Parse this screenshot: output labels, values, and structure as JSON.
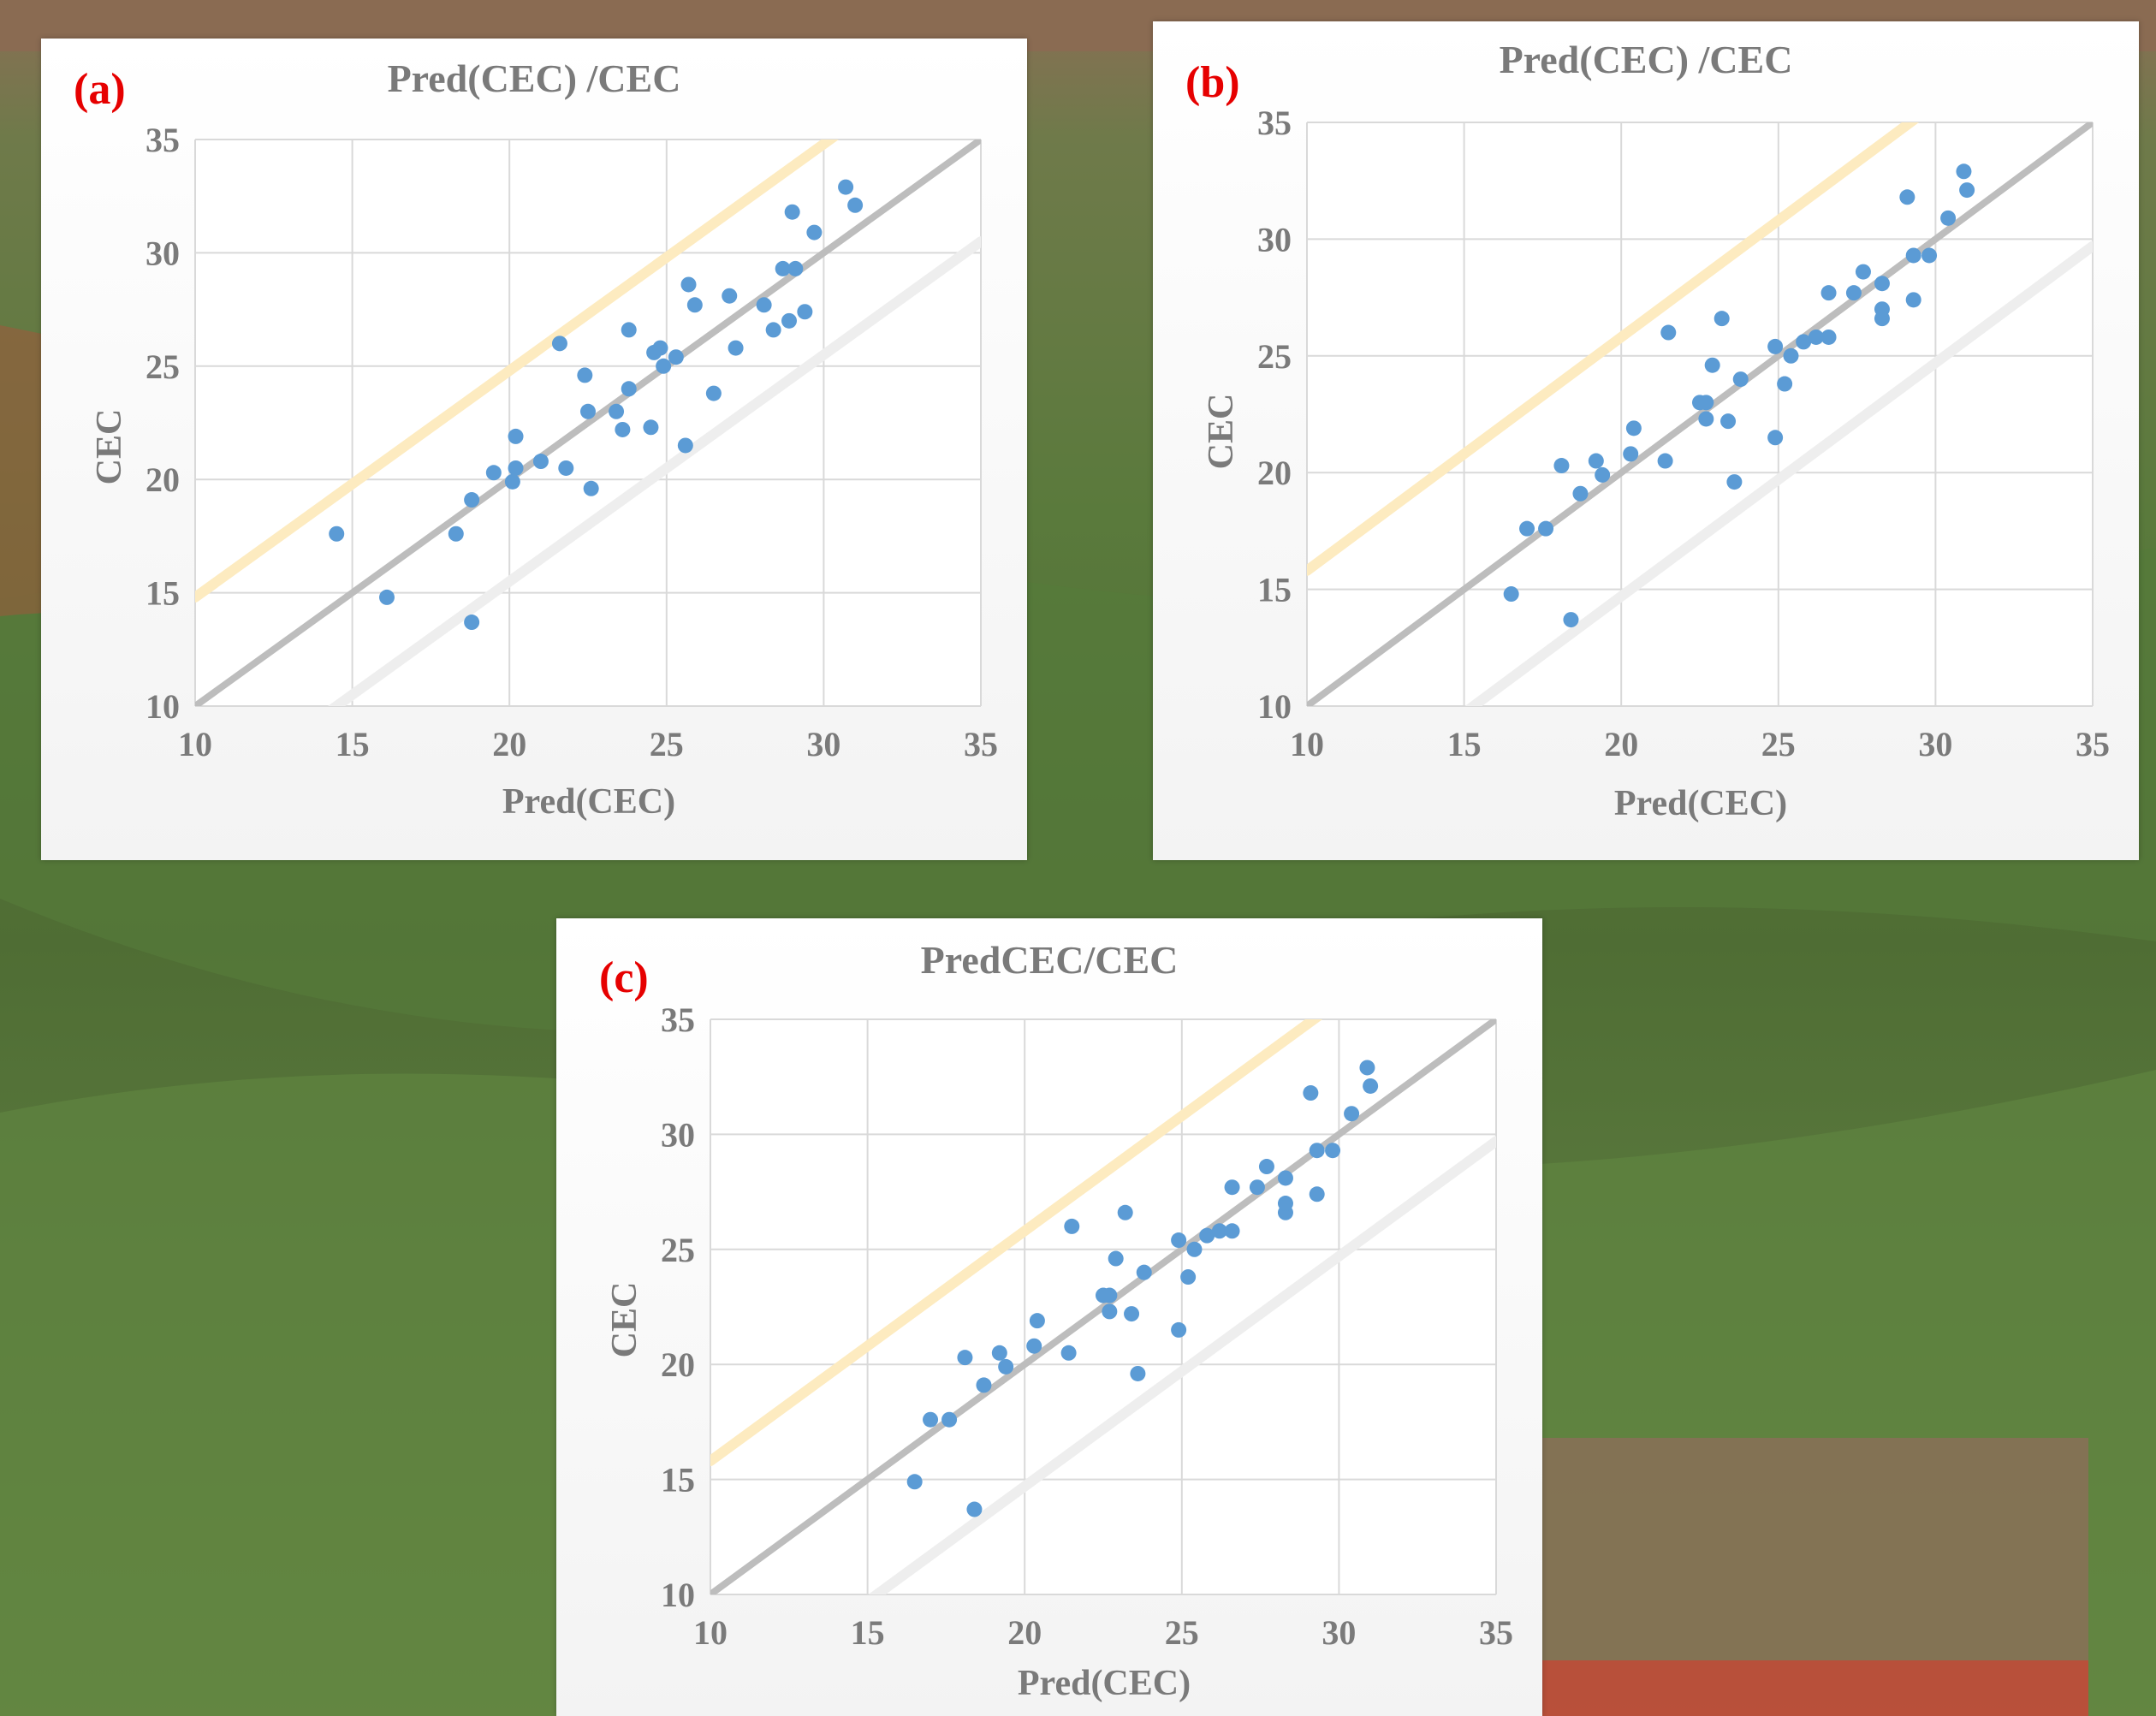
{
  "colors": {
    "points": "#5b9bd5",
    "identity_line": "#bdbdbd",
    "upper_band": "#fdebc0",
    "lower_band": "#eeeeee",
    "grid": "#d9d9d9",
    "panel_label": "#e60000",
    "text": "#7a7a7a"
  },
  "chart_data": [
    {
      "type": "scatter",
      "panel_label": "(a)",
      "title": "Pred(CEC) /CEC",
      "xlabel": "Pred(CEC)",
      "ylabel": "CEC",
      "xlim": [
        10,
        35
      ],
      "ylim": [
        10,
        35
      ],
      "ticks": [
        "10",
        "15",
        "20",
        "25",
        "30",
        "35"
      ],
      "grid": true,
      "reference_lines": {
        "identity_offset": 0,
        "upper_offset": 4.8,
        "lower_offset": -4.5
      },
      "series": [
        {
          "points": [
            [
              14.5,
              17.6
            ],
            [
              16.1,
              14.8
            ],
            [
              18.3,
              17.6
            ],
            [
              18.8,
              19.1
            ],
            [
              18.8,
              13.7
            ],
            [
              19.5,
              20.3
            ],
            [
              20.1,
              19.9
            ],
            [
              20.2,
              20.5
            ],
            [
              20.2,
              21.9
            ],
            [
              21.0,
              20.8
            ],
            [
              21.6,
              26.0
            ],
            [
              21.8,
              20.5
            ],
            [
              22.4,
              24.6
            ],
            [
              22.5,
              23.0
            ],
            [
              22.6,
              19.6
            ],
            [
              23.4,
              23.0
            ],
            [
              23.6,
              22.2
            ],
            [
              23.8,
              24.0
            ],
            [
              23.8,
              26.6
            ],
            [
              24.5,
              22.3
            ],
            [
              24.6,
              25.6
            ],
            [
              24.8,
              25.8
            ],
            [
              24.9,
              25.0
            ],
            [
              25.3,
              25.4
            ],
            [
              25.6,
              21.5
            ],
            [
              25.7,
              28.6
            ],
            [
              25.9,
              27.7
            ],
            [
              26.5,
              23.8
            ],
            [
              27.0,
              28.1
            ],
            [
              27.2,
              25.8
            ],
            [
              28.1,
              27.7
            ],
            [
              28.4,
              26.6
            ],
            [
              28.7,
              29.3
            ],
            [
              28.9,
              27.0
            ],
            [
              29.0,
              31.8
            ],
            [
              29.1,
              29.3
            ],
            [
              29.4,
              27.4
            ],
            [
              29.7,
              30.9
            ],
            [
              30.7,
              32.9
            ],
            [
              31.0,
              32.1
            ]
          ]
        }
      ]
    },
    {
      "type": "scatter",
      "panel_label": "(b)",
      "title": "Pred(CEC) /CEC",
      "xlabel": "Pred(CEC)",
      "ylabel": "CEC",
      "xlim": [
        10,
        35
      ],
      "ylim": [
        10,
        35
      ],
      "ticks": [
        "10",
        "15",
        "20",
        "25",
        "30",
        "35"
      ],
      "grid": true,
      "reference_lines": {
        "identity_offset": 0,
        "upper_offset": 5.8,
        "lower_offset": -5.3
      },
      "series": [
        {
          "points": [
            [
              16.5,
              14.8
            ],
            [
              17.0,
              17.6
            ],
            [
              17.6,
              17.6
            ],
            [
              18.1,
              20.3
            ],
            [
              18.4,
              13.7
            ],
            [
              18.7,
              19.1
            ],
            [
              19.2,
              20.5
            ],
            [
              19.4,
              19.9
            ],
            [
              20.3,
              20.8
            ],
            [
              20.4,
              21.9
            ],
            [
              21.4,
              20.5
            ],
            [
              21.5,
              26.0
            ],
            [
              22.5,
              23.0
            ],
            [
              22.7,
              22.3
            ],
            [
              22.7,
              23.0
            ],
            [
              22.9,
              24.6
            ],
            [
              23.2,
              26.6
            ],
            [
              23.4,
              22.2
            ],
            [
              23.6,
              19.6
            ],
            [
              23.8,
              24.0
            ],
            [
              24.9,
              21.5
            ],
            [
              24.9,
              25.4
            ],
            [
              25.2,
              23.8
            ],
            [
              25.4,
              25.0
            ],
            [
              25.8,
              25.6
            ],
            [
              26.2,
              25.8
            ],
            [
              26.6,
              25.8
            ],
            [
              26.6,
              27.7
            ],
            [
              27.4,
              27.7
            ],
            [
              27.7,
              28.6
            ],
            [
              28.3,
              28.1
            ],
            [
              28.3,
              26.6
            ],
            [
              28.3,
              27.0
            ],
            [
              29.1,
              31.8
            ],
            [
              29.3,
              29.3
            ],
            [
              29.3,
              27.4
            ],
            [
              29.8,
              29.3
            ],
            [
              30.4,
              30.9
            ],
            [
              30.9,
              32.9
            ],
            [
              31.0,
              32.1
            ]
          ]
        }
      ]
    },
    {
      "type": "scatter",
      "panel_label": "(c)",
      "title": "PredCEC/CEC",
      "xlabel": "Pred(CEC)",
      "ylabel": "CEC",
      "xlim": [
        10,
        35
      ],
      "ylim": [
        10,
        35
      ],
      "ticks": [
        "10",
        "15",
        "20",
        "25",
        "30",
        "35"
      ],
      "grid": true,
      "reference_lines": {
        "identity_offset": 0,
        "upper_offset": 5.8,
        "lower_offset": -5.3
      },
      "series": [
        {
          "points": [
            [
              16.5,
              14.9
            ],
            [
              17.0,
              17.6
            ],
            [
              17.6,
              17.6
            ],
            [
              18.1,
              20.3
            ],
            [
              18.4,
              13.7
            ],
            [
              18.7,
              19.1
            ],
            [
              19.2,
              20.5
            ],
            [
              19.4,
              19.9
            ],
            [
              20.3,
              20.8
            ],
            [
              20.4,
              21.9
            ],
            [
              21.4,
              20.5
            ],
            [
              21.5,
              26.0
            ],
            [
              22.5,
              23.0
            ],
            [
              22.7,
              22.3
            ],
            [
              22.7,
              23.0
            ],
            [
              22.9,
              24.6
            ],
            [
              23.2,
              26.6
            ],
            [
              23.4,
              22.2
            ],
            [
              23.6,
              19.6
            ],
            [
              23.8,
              24.0
            ],
            [
              24.9,
              21.5
            ],
            [
              24.9,
              25.4
            ],
            [
              25.2,
              23.8
            ],
            [
              25.4,
              25.0
            ],
            [
              25.8,
              25.6
            ],
            [
              26.2,
              25.8
            ],
            [
              26.6,
              25.8
            ],
            [
              26.6,
              27.7
            ],
            [
              27.4,
              27.7
            ],
            [
              27.7,
              28.6
            ],
            [
              28.3,
              28.1
            ],
            [
              28.3,
              26.6
            ],
            [
              28.3,
              27.0
            ],
            [
              29.1,
              31.8
            ],
            [
              29.3,
              29.3
            ],
            [
              29.3,
              27.4
            ],
            [
              29.8,
              29.3
            ],
            [
              30.4,
              30.9
            ],
            [
              30.9,
              32.9
            ],
            [
              31.0,
              32.1
            ]
          ]
        }
      ]
    }
  ]
}
